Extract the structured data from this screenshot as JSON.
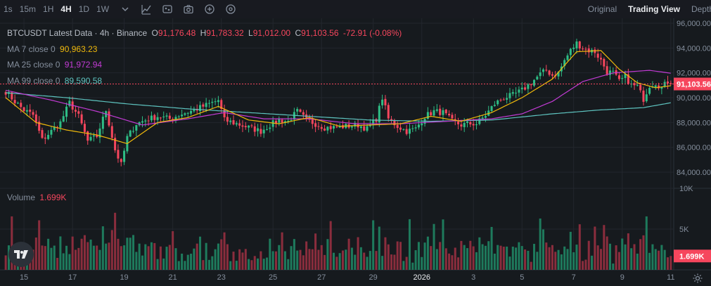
{
  "toolbar": {
    "timeframes": [
      {
        "label": "1s",
        "active": false
      },
      {
        "label": "15m",
        "active": false
      },
      {
        "label": "1H",
        "active": false
      },
      {
        "label": "4H",
        "active": true
      },
      {
        "label": "1D",
        "active": false
      },
      {
        "label": "1W",
        "active": false
      }
    ],
    "tools": [
      "indicator-chevron-icon",
      "indicator-icon",
      "settings-icon",
      "camera-icon",
      "plus-icon",
      "navigate-icon"
    ],
    "views": [
      {
        "label": "Original",
        "active": false
      },
      {
        "label": "Trading View",
        "active": true
      },
      {
        "label": "Depth",
        "active": false
      }
    ]
  },
  "legend": {
    "title": "BTCUSDT Latest Data · 4h · Binance",
    "open_key": "O",
    "open": "91,176.48",
    "high_key": "H",
    "high": "91,783.32",
    "low_key": "L",
    "low": "91,012.00",
    "close_key": "C",
    "close": "91,103.56",
    "change": "-72.91 (-0.08%)",
    "ma7_label": "MA 7 close 0",
    "ma7_value": "90,963.23",
    "ma25_label": "MA 25 close 0",
    "ma25_value": "91,972.94",
    "ma99_label": "MA 99 close 0",
    "ma99_value": "89,590.58",
    "volume_label": "Volume",
    "volume_value": "1.699K"
  },
  "colors": {
    "up": "#2ebd85",
    "down": "#f6465d",
    "vol_up": "#1e7a5c",
    "vol_down": "#8a2d3d",
    "ma7": "#f0b90b",
    "ma25": "#c23bd4",
    "ma99": "#5ec4c0",
    "background": "#161a1e",
    "grid": "#22262d"
  },
  "chart_data": {
    "type": "candlestick",
    "symbol": "BTCUSDT",
    "interval": "4h",
    "exchange": "Binance",
    "price_axis": {
      "ticks": [
        "96,000.00",
        "94,000.00",
        "92,000.00",
        "90,000.00",
        "88,000.00",
        "86,000.00",
        "84,000.00"
      ],
      "range": [
        82700,
        96000
      ]
    },
    "volume_axis": {
      "ticks": [
        "10K",
        "5K"
      ],
      "range": [
        0,
        10000
      ]
    },
    "x_ticks": [
      "15",
      "17",
      "19",
      "21",
      "23",
      "25",
      "27",
      "29",
      "2026",
      "3",
      "5",
      "7",
      "9",
      "11"
    ],
    "last_price_label": "91,103.56",
    "last_volume_label": "1.699K",
    "close_path": [
      [
        0,
        90500
      ],
      [
        3,
        89700
      ],
      [
        6,
        89000
      ],
      [
        9,
        88600
      ],
      [
        12,
        86600
      ],
      [
        15,
        87300
      ],
      [
        18,
        88000
      ],
      [
        21,
        89600
      ],
      [
        24,
        88500
      ],
      [
        27,
        86500
      ],
      [
        30,
        86900
      ],
      [
        33,
        89000
      ],
      [
        36,
        85800
      ],
      [
        38,
        84600
      ],
      [
        40,
        86800
      ],
      [
        43,
        87900
      ],
      [
        46,
        88200
      ],
      [
        50,
        88500
      ],
      [
        54,
        88300
      ],
      [
        58,
        88700
      ],
      [
        62,
        89000
      ],
      [
        67,
        89500
      ],
      [
        70,
        89800
      ],
      [
        72,
        88200
      ],
      [
        76,
        87900
      ],
      [
        80,
        87600
      ],
      [
        84,
        87300
      ],
      [
        87,
        87800
      ],
      [
        90,
        88200
      ],
      [
        93,
        88100
      ],
      [
        96,
        88900
      ],
      [
        99,
        88200
      ],
      [
        102,
        87900
      ],
      [
        105,
        87600
      ],
      [
        108,
        87600
      ],
      [
        112,
        87700
      ],
      [
        116,
        87800
      ],
      [
        119,
        87500
      ],
      [
        122,
        88300
      ],
      [
        124,
        90000
      ],
      [
        126,
        88300
      ],
      [
        129,
        87700
      ],
      [
        132,
        87300
      ],
      [
        135,
        87500
      ],
      [
        138,
        88500
      ],
      [
        141,
        88900
      ],
      [
        144,
        88800
      ],
      [
        147,
        88100
      ],
      [
        150,
        87800
      ],
      [
        152,
        87900
      ],
      [
        155,
        87900
      ],
      [
        158,
        88600
      ],
      [
        161,
        89500
      ],
      [
        164,
        90000
      ],
      [
        167,
        90200
      ],
      [
        170,
        90600
      ],
      [
        173,
        91200
      ],
      [
        176,
        91900
      ],
      [
        178,
        92200
      ],
      [
        180,
        91800
      ],
      [
        182,
        92000
      ],
      [
        184,
        93000
      ],
      [
        186,
        93800
      ],
      [
        188,
        94400
      ],
      [
        190,
        94000
      ],
      [
        192,
        93800
      ],
      [
        194,
        93700
      ],
      [
        196,
        93000
      ],
      [
        198,
        92100
      ],
      [
        200,
        92000
      ],
      [
        202,
        91300
      ],
      [
        204,
        91700
      ],
      [
        206,
        91000
      ],
      [
        208,
        90900
      ],
      [
        210,
        89900
      ],
      [
        212,
        91000
      ],
      [
        214,
        91200
      ],
      [
        216,
        90800
      ],
      [
        218,
        91300
      ],
      [
        219,
        91100
      ]
    ],
    "ma7": [
      [
        0,
        90000
      ],
      [
        10,
        88000
      ],
      [
        20,
        87400
      ],
      [
        30,
        87000
      ],
      [
        40,
        86300
      ],
      [
        50,
        88000
      ],
      [
        60,
        88400
      ],
      [
        70,
        89300
      ],
      [
        80,
        88200
      ],
      [
        90,
        87900
      ],
      [
        100,
        88400
      ],
      [
        110,
        87700
      ],
      [
        120,
        87800
      ],
      [
        130,
        87900
      ],
      [
        140,
        88500
      ],
      [
        150,
        88100
      ],
      [
        160,
        88800
      ],
      [
        170,
        90000
      ],
      [
        180,
        91500
      ],
      [
        188,
        93700
      ],
      [
        196,
        93800
      ],
      [
        202,
        92300
      ],
      [
        208,
        91200
      ],
      [
        214,
        90800
      ],
      [
        219,
        90963
      ]
    ],
    "ma25": [
      [
        0,
        90600
      ],
      [
        15,
        89800
      ],
      [
        30,
        88900
      ],
      [
        45,
        87800
      ],
      [
        60,
        88300
      ],
      [
        72,
        88800
      ],
      [
        85,
        88300
      ],
      [
        100,
        88300
      ],
      [
        115,
        87900
      ],
      [
        130,
        87900
      ],
      [
        145,
        88100
      ],
      [
        160,
        88300
      ],
      [
        170,
        88700
      ],
      [
        180,
        89700
      ],
      [
        190,
        91300
      ],
      [
        200,
        92000
      ],
      [
        212,
        92200
      ],
      [
        219,
        91973
      ]
    ],
    "ma99": [
      [
        0,
        90400
      ],
      [
        20,
        90000
      ],
      [
        40,
        89500
      ],
      [
        60,
        89100
      ],
      [
        80,
        88800
      ],
      [
        100,
        88500
      ],
      [
        120,
        88200
      ],
      [
        140,
        88100
      ],
      [
        160,
        88200
      ],
      [
        180,
        88700
      ],
      [
        195,
        89000
      ],
      [
        210,
        89200
      ],
      [
        219,
        89591
      ]
    ]
  }
}
